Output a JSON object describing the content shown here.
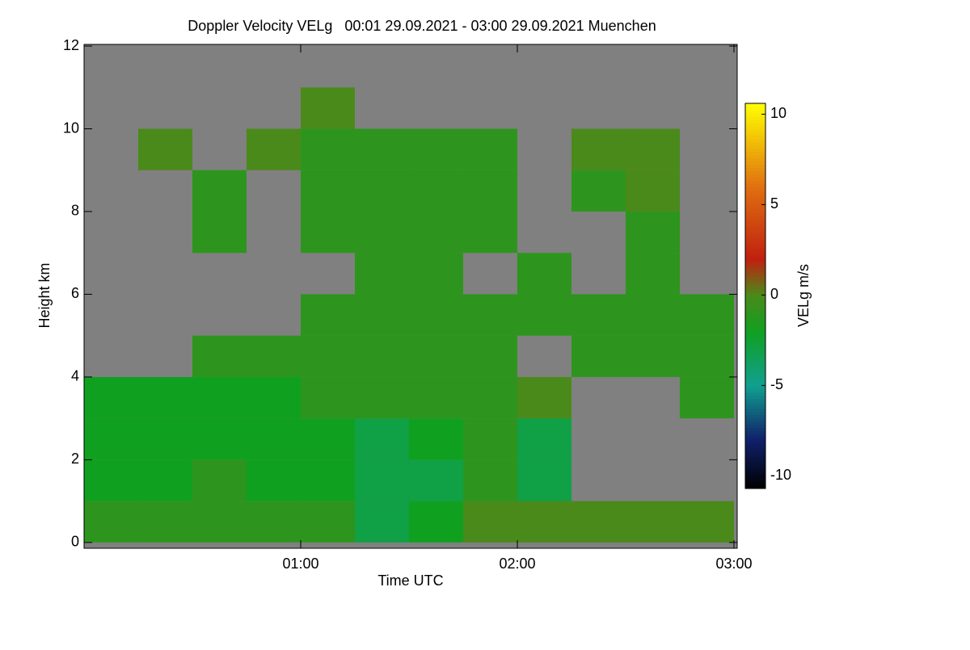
{
  "chart_data": {
    "type": "heatmap",
    "title": "Doppler Velocity VELg   00:01 29.09.2021 - 03:00 29.09.2021 Muenchen",
    "xlabel": "Time UTC",
    "ylabel": "Height km",
    "colorbar_label": "VELg m/s",
    "x": [
      0.125,
      0.375,
      0.625,
      0.875,
      1.125,
      1.375,
      1.625,
      1.875,
      2.125,
      2.375,
      2.625,
      2.875
    ],
    "y": [
      0.5,
      1.5,
      2.5,
      3.5,
      4.5,
      5.5,
      6.5,
      7.5,
      8.5,
      9.5,
      10.5,
      11.5
    ],
    "z": [
      [
        -1,
        -1,
        -1,
        -1,
        -1,
        -3,
        -2,
        0,
        0,
        0,
        0,
        0
      ],
      [
        -2,
        -2,
        -1,
        -2,
        -2,
        -3,
        -3,
        -1,
        -3,
        null,
        null,
        null
      ],
      [
        -2,
        -2,
        -2,
        -2,
        -2,
        -3,
        -2,
        -1,
        -3,
        null,
        null,
        null
      ],
      [
        -2,
        -2,
        -2,
        -2,
        -1,
        -1,
        -1,
        -1,
        0,
        null,
        null,
        -1
      ],
      [
        null,
        null,
        -1,
        -1,
        -1,
        -1,
        -1,
        -1,
        null,
        -1,
        -1,
        -1
      ],
      [
        null,
        null,
        null,
        null,
        -1,
        -1,
        -1,
        -1,
        -1,
        -1,
        -1,
        -1
      ],
      [
        null,
        null,
        null,
        null,
        null,
        -1,
        -1,
        null,
        -1,
        null,
        -1,
        null
      ],
      [
        null,
        null,
        -1,
        null,
        -1,
        -1,
        -1,
        -1,
        null,
        null,
        -1,
        null
      ],
      [
        null,
        null,
        -1,
        null,
        -1,
        -1,
        -1,
        -1,
        null,
        -1,
        0,
        null
      ],
      [
        null,
        0,
        null,
        0,
        -1,
        -1,
        -1,
        -1,
        null,
        0,
        0,
        null
      ],
      [
        null,
        null,
        null,
        null,
        0,
        null,
        null,
        null,
        null,
        null,
        null,
        null
      ],
      [
        null,
        null,
        null,
        null,
        null,
        null,
        null,
        null,
        null,
        null,
        null,
        null
      ]
    ],
    "xlim": [
      0,
      3.015
    ],
    "xticks": [
      {
        "value": 1,
        "label": "01:00"
      },
      {
        "value": 2,
        "label": "02:00"
      },
      {
        "value": 3,
        "label": "03:00"
      }
    ],
    "ylim": [
      -0.14,
      12.04
    ],
    "yticks": [
      0,
      2,
      4,
      6,
      8,
      10,
      12
    ],
    "clim": [
      -10.7,
      10.6
    ],
    "cticks": [
      -10,
      -5,
      0,
      5,
      10
    ],
    "null_color": "#808080",
    "colorscale": [
      [
        -10.7,
        "#000000"
      ],
      [
        -8,
        "#10206a"
      ],
      [
        -5,
        "#10a090"
      ],
      [
        -2,
        "#10a020"
      ],
      [
        0,
        "#4a8a1a"
      ],
      [
        2,
        "#c02010"
      ],
      [
        6,
        "#e07010"
      ],
      [
        10.6,
        "#ffff00"
      ]
    ]
  }
}
